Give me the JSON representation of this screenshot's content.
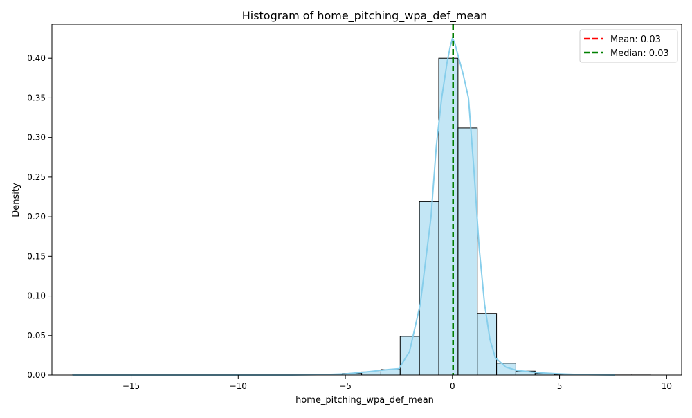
{
  "chart_data": {
    "type": "bar",
    "title": "Histogram of home_pitching_wpa_def_mean",
    "xlabel": "home_pitching_wpa_def_mean",
    "ylabel": "Density",
    "xlim": [
      -18.7,
      10.7
    ],
    "ylim": [
      0,
      0.443
    ],
    "xticks": [
      -15,
      -10,
      -5,
      0,
      5,
      10
    ],
    "xtick_labels": [
      "−15",
      "−10",
      "−5",
      "0",
      "5",
      "10"
    ],
    "yticks": [
      0.0,
      0.05,
      0.1,
      0.15,
      0.2,
      0.25,
      0.3,
      0.35,
      0.4
    ],
    "ytick_labels": [
      "0.00",
      "0.05",
      "0.10",
      "0.15",
      "0.20",
      "0.25",
      "0.30",
      "0.35",
      "0.40"
    ],
    "bins": [
      {
        "x0": -17.74,
        "x1": -16.84,
        "y": 0.0001
      },
      {
        "x0": -16.84,
        "x1": -15.94,
        "y": 0.0001
      },
      {
        "x0": -15.94,
        "x1": -15.04,
        "y": 0.0001
      },
      {
        "x0": -15.04,
        "x1": -14.14,
        "y": 0.0001
      },
      {
        "x0": -14.14,
        "x1": -13.24,
        "y": 0.0001
      },
      {
        "x0": -13.24,
        "x1": -12.34,
        "y": 0.0001
      },
      {
        "x0": -12.34,
        "x1": -11.44,
        "y": 0.0001
      },
      {
        "x0": -11.44,
        "x1": -10.54,
        "y": 0.0001
      },
      {
        "x0": -10.54,
        "x1": -9.64,
        "y": 0.0001
      },
      {
        "x0": -9.64,
        "x1": -8.74,
        "y": 0.0001
      },
      {
        "x0": -8.74,
        "x1": -7.84,
        "y": 0.0001
      },
      {
        "x0": -7.84,
        "x1": -6.94,
        "y": 0.0002
      },
      {
        "x0": -6.94,
        "x1": -6.04,
        "y": 0.0004
      },
      {
        "x0": -6.04,
        "x1": -5.14,
        "y": 0.0008
      },
      {
        "x0": -5.14,
        "x1": -4.24,
        "y": 0.002
      },
      {
        "x0": -4.24,
        "x1": -3.34,
        "y": 0.004
      },
      {
        "x0": -3.34,
        "x1": -2.44,
        "y": 0.007
      },
      {
        "x0": -2.44,
        "x1": -1.54,
        "y": 0.049
      },
      {
        "x0": -1.54,
        "x1": -0.64,
        "y": 0.219
      },
      {
        "x0": -0.64,
        "x1": 0.26,
        "y": 0.4
      },
      {
        "x0": 0.26,
        "x1": 1.16,
        "y": 0.312
      },
      {
        "x0": 1.16,
        "x1": 2.06,
        "y": 0.078
      },
      {
        "x0": 2.06,
        "x1": 2.96,
        "y": 0.015
      },
      {
        "x0": 2.96,
        "x1": 3.86,
        "y": 0.005
      },
      {
        "x0": 3.86,
        "x1": 4.76,
        "y": 0.002
      },
      {
        "x0": 4.76,
        "x1": 5.66,
        "y": 0.001
      },
      {
        "x0": 5.66,
        "x1": 6.56,
        "y": 0.0004
      },
      {
        "x0": 6.56,
        "x1": 7.46,
        "y": 0.0002
      },
      {
        "x0": 7.46,
        "x1": 8.36,
        "y": 0.0001
      },
      {
        "x0": 8.36,
        "x1": 9.26,
        "y": 0.0001
      }
    ],
    "kde": {
      "x": [
        -17.74,
        -7.5,
        -6.0,
        -5.0,
        -4.0,
        -3.0,
        -2.5,
        -2.0,
        -1.5,
        -1.0,
        -0.75,
        -0.5,
        -0.25,
        -0.1,
        0.0,
        0.1,
        0.25,
        0.5,
        0.75,
        1.0,
        1.25,
        1.5,
        1.75,
        2.0,
        2.5,
        3.0,
        4.0,
        5.0,
        6.0,
        7.6
      ],
      "y": [
        0.0,
        0.0,
        0.0005,
        0.0015,
        0.004,
        0.007,
        0.008,
        0.03,
        0.09,
        0.2,
        0.29,
        0.35,
        0.395,
        0.415,
        0.425,
        0.42,
        0.405,
        0.38,
        0.35,
        0.26,
        0.16,
        0.09,
        0.045,
        0.022,
        0.01,
        0.006,
        0.003,
        0.0015,
        0.0005,
        0.0
      ]
    },
    "lines": [
      {
        "name": "Mean: 0.03",
        "x": 0.03,
        "color": "#ff0000",
        "style": "dashed"
      },
      {
        "name": "Median: 0.03",
        "x": 0.03,
        "color": "#008000",
        "style": "dashed"
      }
    ],
    "legend_position": "top-right",
    "colors": {
      "bar_fill": "#87ceeb",
      "bar_fill_alpha": 0.5,
      "bar_edge": "#000000",
      "kde": "#87ceeb"
    }
  }
}
